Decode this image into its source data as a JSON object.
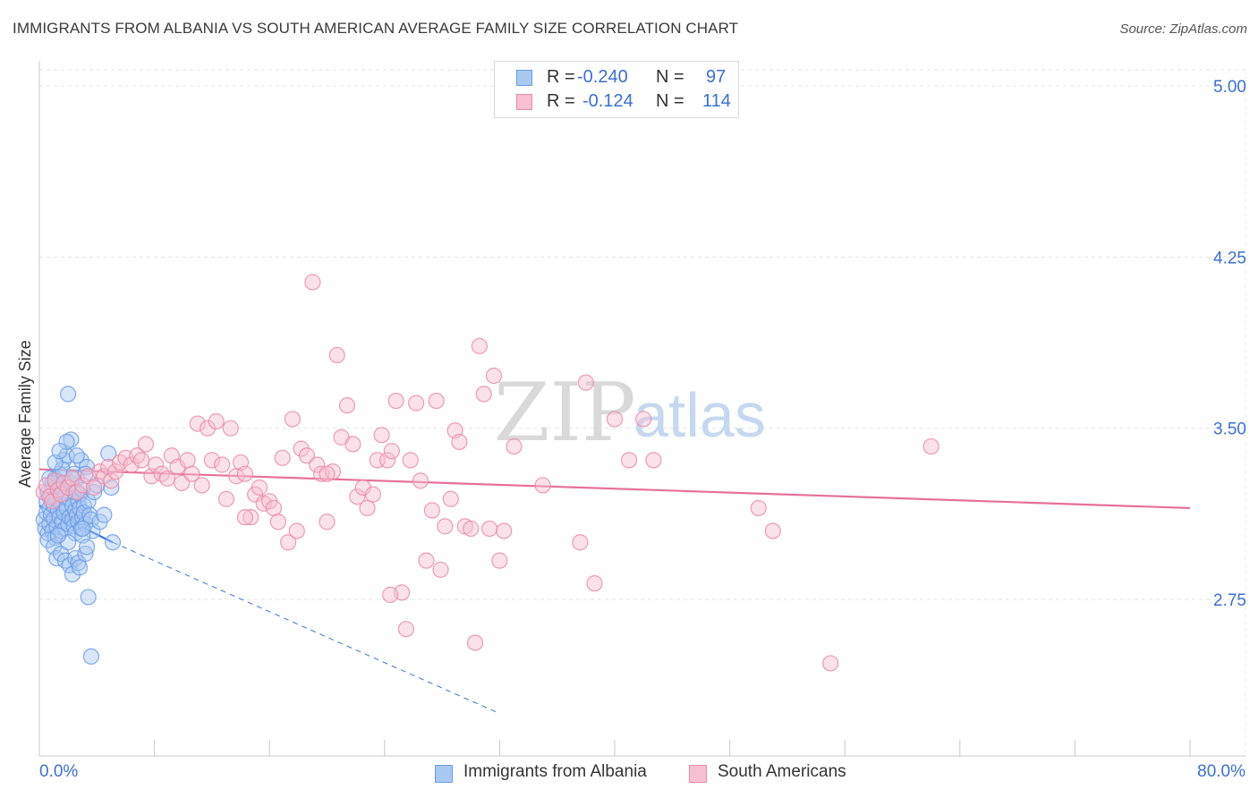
{
  "title": "IMMIGRANTS FROM ALBANIA VS SOUTH AMERICAN AVERAGE FAMILY SIZE CORRELATION CHART",
  "source": "Source: ZipAtlas.com",
  "watermark": {
    "zip": "ZIP",
    "atlas": "atlas"
  },
  "legend": {
    "rows": [
      {
        "r_label": "R =",
        "r_value": "-0.240",
        "n_label": "N =",
        "n_value": "97",
        "color": "#a9c8f2",
        "border": "#6a9ee6"
      },
      {
        "r_label": "R =",
        "r_value": "-0.124",
        "n_label": "N =",
        "n_value": "114",
        "color": "#f7bfd1",
        "border": "#ea8aa8"
      }
    ]
  },
  "bottom_legend": [
    {
      "label": "Immigrants from Albania",
      "color": "#a9c8f2",
      "border": "#6a9ee6"
    },
    {
      "label": "South Americans",
      "color": "#f7bfd1",
      "border": "#ea8aa8"
    }
  ],
  "x_axis": {
    "min_label": "0.0%",
    "max_label": "80.0%"
  },
  "chart_data": {
    "type": "scatter",
    "title": "IMMIGRANTS FROM ALBANIA VS SOUTH AMERICAN AVERAGE FAMILY SIZE CORRELATION CHART",
    "xlabel": "",
    "ylabel": "Average Family Size",
    "xlim": [
      0,
      80
    ],
    "ylim": [
      2.25,
      5.08
    ],
    "y_ticks": [
      2.75,
      3.5,
      4.25,
      5.0
    ],
    "y_tick_labels": [
      "2.75",
      "3.50",
      "4.25",
      "5.00"
    ],
    "grid": true,
    "series": [
      {
        "name": "Immigrants from Albania",
        "color": "#6a9ee6",
        "fill": "#a9c8f2",
        "r": -0.24,
        "n": 97,
        "trend": {
          "x0": 0.0,
          "y0": 3.16,
          "x1": 5.1,
          "y1": 3.0,
          "dash_to_x": 32.0,
          "dash_to_y": 2.25
        },
        "points": [
          [
            0.3,
            3.1
          ],
          [
            0.4,
            3.06
          ],
          [
            0.5,
            3.13
          ],
          [
            0.5,
            3.18
          ],
          [
            0.6,
            3.04
          ],
          [
            0.6,
            3.22
          ],
          [
            0.7,
            3.15
          ],
          [
            0.7,
            3.08
          ],
          [
            0.8,
            3.2
          ],
          [
            0.8,
            3.12
          ],
          [
            0.9,
            3.05
          ],
          [
            0.9,
            3.24
          ],
          [
            1.0,
            3.16
          ],
          [
            1.0,
            3.1
          ],
          [
            1.1,
            3.02
          ],
          [
            1.1,
            3.28
          ],
          [
            1.2,
            3.19
          ],
          [
            1.2,
            3.07
          ],
          [
            1.3,
            3.14
          ],
          [
            1.3,
            3.25
          ],
          [
            1.4,
            3.11
          ],
          [
            1.4,
            3.3
          ],
          [
            1.5,
            3.05
          ],
          [
            1.5,
            3.17
          ],
          [
            1.6,
            3.22
          ],
          [
            1.6,
            3.09
          ],
          [
            1.7,
            3.36
          ],
          [
            1.7,
            3.13
          ],
          [
            1.8,
            3.2
          ],
          [
            1.8,
            3.06
          ],
          [
            1.9,
            3.38
          ],
          [
            1.9,
            3.15
          ],
          [
            2.0,
            3.24
          ],
          [
            2.0,
            3.08
          ],
          [
            2.1,
            3.11
          ],
          [
            2.1,
            3.19
          ],
          [
            2.2,
            3.45
          ],
          [
            2.2,
            3.26
          ],
          [
            2.3,
            3.1
          ],
          [
            2.3,
            3.16
          ],
          [
            2.4,
            3.07
          ],
          [
            2.4,
            3.22
          ],
          [
            2.5,
            3.14
          ],
          [
            2.5,
            3.04
          ],
          [
            2.6,
            3.28
          ],
          [
            2.6,
            3.12
          ],
          [
            2.7,
            3.18
          ],
          [
            2.7,
            3.09
          ],
          [
            2.8,
            3.21
          ],
          [
            2.8,
            3.15
          ],
          [
            2.9,
            3.06
          ],
          [
            2.9,
            3.36
          ],
          [
            3.0,
            3.23
          ],
          [
            3.0,
            3.11
          ],
          [
            3.1,
            3.16
          ],
          [
            3.1,
            3.13
          ],
          [
            3.2,
            3.08
          ],
          [
            3.3,
            3.33
          ],
          [
            3.4,
            3.18
          ],
          [
            3.5,
            3.12
          ],
          [
            3.6,
            3.1
          ],
          [
            3.7,
            3.05
          ],
          [
            3.8,
            3.22
          ],
          [
            4.0,
            3.25
          ],
          [
            4.2,
            3.09
          ],
          [
            4.5,
            3.12
          ],
          [
            4.8,
            3.39
          ],
          [
            5.0,
            3.24
          ],
          [
            5.1,
            3.0
          ],
          [
            0.6,
            3.01
          ],
          [
            1.0,
            2.98
          ],
          [
            1.2,
            2.93
          ],
          [
            1.5,
            2.95
          ],
          [
            1.8,
            2.92
          ],
          [
            2.0,
            3.0
          ],
          [
            2.1,
            2.9
          ],
          [
            2.3,
            2.86
          ],
          [
            2.5,
            2.93
          ],
          [
            2.7,
            2.91
          ],
          [
            2.8,
            2.89
          ],
          [
            3.0,
            3.03
          ],
          [
            3.2,
            2.95
          ],
          [
            3.3,
            2.98
          ],
          [
            3.4,
            2.76
          ],
          [
            3.6,
            2.5
          ],
          [
            1.9,
            3.44
          ],
          [
            2.0,
            3.65
          ],
          [
            1.6,
            3.32
          ],
          [
            1.1,
            3.35
          ],
          [
            0.9,
            3.26
          ],
          [
            2.4,
            3.3
          ],
          [
            2.6,
            3.38
          ],
          [
            1.4,
            3.4
          ],
          [
            0.7,
            3.28
          ],
          [
            3.0,
            3.06
          ],
          [
            3.2,
            3.3
          ],
          [
            1.3,
            3.03
          ]
        ]
      },
      {
        "name": "South Americans",
        "color": "#ea8aa8",
        "fill": "#f7bfd1",
        "r": -0.124,
        "n": 114,
        "trend": {
          "x0": 0.0,
          "y0": 3.32,
          "x1": 80.0,
          "y1": 3.15
        },
        "points": [
          [
            0.3,
            3.22
          ],
          [
            0.5,
            3.25
          ],
          [
            0.7,
            3.2
          ],
          [
            0.9,
            3.18
          ],
          [
            1.1,
            3.27
          ],
          [
            1.3,
            3.23
          ],
          [
            1.5,
            3.21
          ],
          [
            1.7,
            3.26
          ],
          [
            2.0,
            3.24
          ],
          [
            2.3,
            3.28
          ],
          [
            2.6,
            3.22
          ],
          [
            3.0,
            3.25
          ],
          [
            3.4,
            3.29
          ],
          [
            3.8,
            3.24
          ],
          [
            4.2,
            3.31
          ],
          [
            4.5,
            3.29
          ],
          [
            4.8,
            3.33
          ],
          [
            5.0,
            3.27
          ],
          [
            5.3,
            3.31
          ],
          [
            5.6,
            3.35
          ],
          [
            6.0,
            3.37
          ],
          [
            6.4,
            3.34
          ],
          [
            6.8,
            3.38
          ],
          [
            7.1,
            3.36
          ],
          [
            7.4,
            3.43
          ],
          [
            7.8,
            3.29
          ],
          [
            8.1,
            3.34
          ],
          [
            8.5,
            3.3
          ],
          [
            8.9,
            3.28
          ],
          [
            9.2,
            3.38
          ],
          [
            9.6,
            3.33
          ],
          [
            9.9,
            3.26
          ],
          [
            10.3,
            3.36
          ],
          [
            10.6,
            3.3
          ],
          [
            11.0,
            3.52
          ],
          [
            11.3,
            3.25
          ],
          [
            11.7,
            3.5
          ],
          [
            12.0,
            3.36
          ],
          [
            12.3,
            3.53
          ],
          [
            12.7,
            3.34
          ],
          [
            13.0,
            3.19
          ],
          [
            13.3,
            3.5
          ],
          [
            13.7,
            3.29
          ],
          [
            14.0,
            3.35
          ],
          [
            14.3,
            3.3
          ],
          [
            14.7,
            3.11
          ],
          [
            15.0,
            3.21
          ],
          [
            15.3,
            3.24
          ],
          [
            15.6,
            3.17
          ],
          [
            16.0,
            3.18
          ],
          [
            16.3,
            3.15
          ],
          [
            16.6,
            3.09
          ],
          [
            16.9,
            3.37
          ],
          [
            17.3,
            3.0
          ],
          [
            17.6,
            3.54
          ],
          [
            17.9,
            3.05
          ],
          [
            18.2,
            3.41
          ],
          [
            18.6,
            3.38
          ],
          [
            19.0,
            4.14
          ],
          [
            19.3,
            3.34
          ],
          [
            19.6,
            3.3
          ],
          [
            20.0,
            3.09
          ],
          [
            20.4,
            3.31
          ],
          [
            20.7,
            3.82
          ],
          [
            21.0,
            3.46
          ],
          [
            21.4,
            3.6
          ],
          [
            21.8,
            3.43
          ],
          [
            22.1,
            3.2
          ],
          [
            22.5,
            3.24
          ],
          [
            22.8,
            3.15
          ],
          [
            23.2,
            3.21
          ],
          [
            23.5,
            3.36
          ],
          [
            23.8,
            3.47
          ],
          [
            24.2,
            3.36
          ],
          [
            24.5,
            3.4
          ],
          [
            24.8,
            3.62
          ],
          [
            25.2,
            2.78
          ],
          [
            25.5,
            2.62
          ],
          [
            25.8,
            3.36
          ],
          [
            26.2,
            3.61
          ],
          [
            26.5,
            3.27
          ],
          [
            26.9,
            2.92
          ],
          [
            27.3,
            3.14
          ],
          [
            27.6,
            3.62
          ],
          [
            27.9,
            2.88
          ],
          [
            28.2,
            3.07
          ],
          [
            28.6,
            3.19
          ],
          [
            28.9,
            3.49
          ],
          [
            29.2,
            3.44
          ],
          [
            29.6,
            3.07
          ],
          [
            30.0,
            3.06
          ],
          [
            30.3,
            2.56
          ],
          [
            30.6,
            3.86
          ],
          [
            30.9,
            3.65
          ],
          [
            31.3,
            3.06
          ],
          [
            31.6,
            3.73
          ],
          [
            32.0,
            2.92
          ],
          [
            32.3,
            3.05
          ],
          [
            33.0,
            3.42
          ],
          [
            35.0,
            3.25
          ],
          [
            37.6,
            3.0
          ],
          [
            38.0,
            3.7
          ],
          [
            38.6,
            2.82
          ],
          [
            40.0,
            3.54
          ],
          [
            41.0,
            3.36
          ],
          [
            42.0,
            3.54
          ],
          [
            42.7,
            3.36
          ],
          [
            24.4,
            2.77
          ],
          [
            50.0,
            3.15
          ],
          [
            51.0,
            3.05
          ],
          [
            55.0,
            2.47
          ],
          [
            62.0,
            3.42
          ],
          [
            14.3,
            3.11
          ],
          [
            20.0,
            3.3
          ]
        ]
      }
    ]
  }
}
